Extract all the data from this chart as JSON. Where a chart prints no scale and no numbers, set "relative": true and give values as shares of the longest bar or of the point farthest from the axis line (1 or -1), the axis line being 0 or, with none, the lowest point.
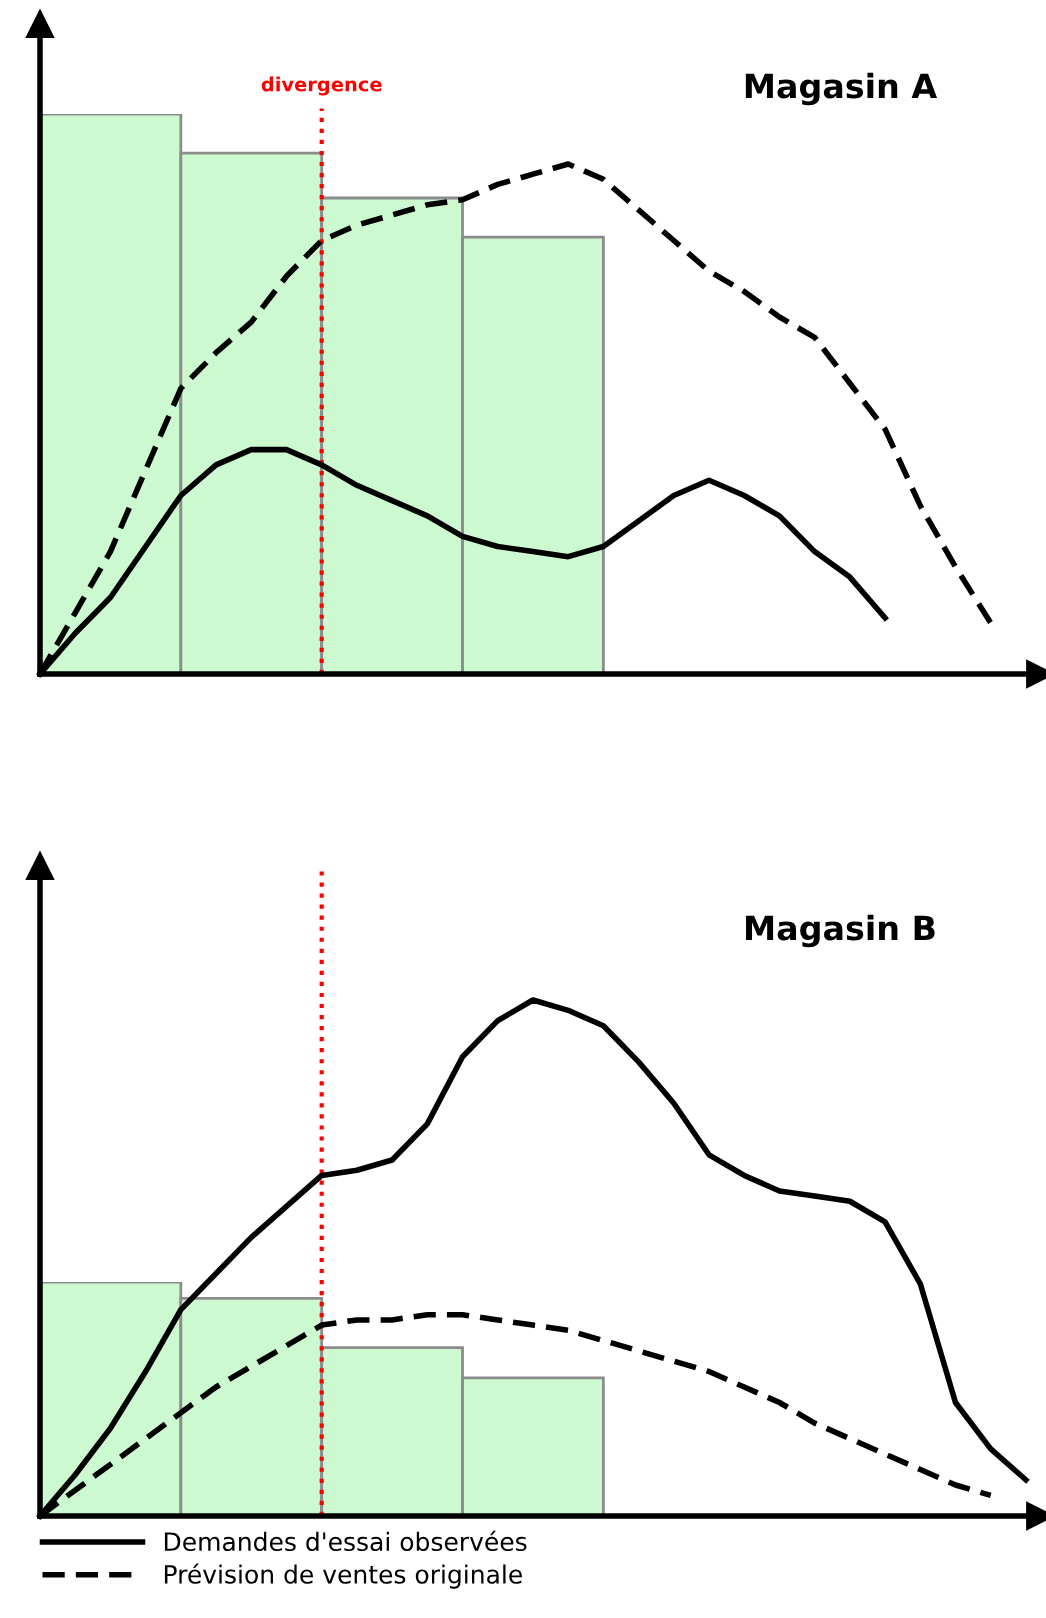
{
  "chart_data": [
    {
      "type": "bar",
      "relative": true,
      "categories": [
        null,
        null,
        null,
        null
      ],
      "color": "#ccf9d0",
      "values": [
        1.0,
        0.93,
        0.85,
        0.78
      ],
      "annotations": [
        "divergence"
      ]
    },
    {
      "type": "line",
      "title": "Magasin A",
      "relative": true,
      "categories": [
        null,
        null,
        null,
        null,
        null,
        null,
        null,
        null,
        null,
        null,
        null,
        null,
        null,
        null,
        null,
        null,
        null,
        null,
        null,
        null,
        null,
        null,
        null,
        null,
        null,
        null,
        null,
        null,
        null
      ],
      "series": [
        {
          "color": "#000000",
          "line_style": "solid",
          "values": [
            0,
            0.08,
            0.15,
            0.25,
            0.35,
            0.41,
            0.44,
            0.44,
            0.41,
            0.37,
            0.34,
            0.31,
            0.27,
            0.25,
            0.24,
            0.23,
            0.25,
            0.3,
            0.35,
            0.38,
            0.35,
            0.31,
            0.24,
            0.19,
            0.11,
            null,
            null,
            null,
            null
          ]
        },
        {
          "color": "#000000",
          "line_style": "dashed",
          "values": [
            0,
            0.12,
            0.24,
            0.4,
            0.56,
            0.63,
            0.69,
            0.78,
            0.85,
            0.88,
            0.9,
            0.92,
            0.93,
            0.96,
            0.98,
            1.0,
            0.97,
            0.91,
            0.85,
            0.79,
            0.75,
            0.7,
            0.66,
            0.57,
            0.48,
            0.33,
            0.21,
            0.1,
            null
          ]
        }
      ]
    },
    {
      "type": "bar",
      "relative": true,
      "categories": [
        null,
        null,
        null,
        null
      ],
      "color": "#ccf9d0",
      "values": [
        1.0,
        0.93,
        0.72,
        0.59
      ]
    },
    {
      "type": "line",
      "title": "Magasin B",
      "relative": true,
      "legend": "bottom",
      "categories": [
        null,
        null,
        null,
        null,
        null,
        null,
        null,
        null,
        null,
        null,
        null,
        null,
        null,
        null,
        null,
        null,
        null,
        null,
        null,
        null,
        null,
        null,
        null,
        null,
        null,
        null,
        null,
        null,
        null
      ],
      "series": [
        {
          "name": "Demandes d'essai observées",
          "color": "#000000",
          "line_style": "solid",
          "values": [
            0,
            0.08,
            0.17,
            0.28,
            0.4,
            0.47,
            0.54,
            0.6,
            0.66,
            0.67,
            0.69,
            0.76,
            0.89,
            0.96,
            1.0,
            0.98,
            0.95,
            0.88,
            0.8,
            0.7,
            0.66,
            0.63,
            0.62,
            0.61,
            0.57,
            0.45,
            0.22,
            0.13,
            0.07
          ]
        },
        {
          "name": "Prévision de ventes originale",
          "color": "#000000",
          "line_style": "dashed",
          "values": [
            0,
            0.05,
            0.1,
            0.15,
            0.2,
            0.25,
            0.29,
            0.33,
            0.37,
            0.38,
            0.38,
            0.39,
            0.39,
            0.38,
            0.37,
            0.36,
            0.34,
            0.32,
            0.3,
            0.28,
            0.25,
            0.22,
            0.18,
            0.15,
            0.12,
            0.09,
            0.06,
            0.04,
            null
          ]
        }
      ]
    }
  ]
}
